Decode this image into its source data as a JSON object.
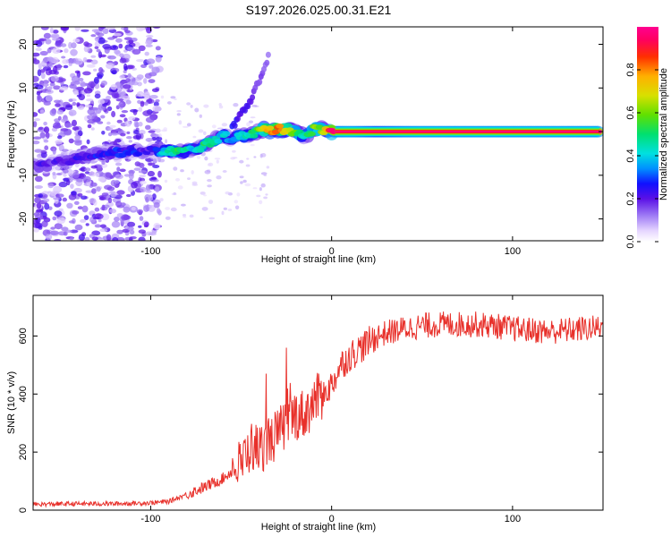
{
  "title": "S197.2026.025.00.31.E21",
  "chart_data": [
    {
      "type": "heatmap",
      "xlabel": "Height of straight line (km)",
      "ylabel": "Frequency (Hz)",
      "xlim": [
        -165,
        150
      ],
      "ylim": [
        -25,
        24
      ],
      "xticks": [
        -100,
        0,
        100
      ],
      "xtick_labels": [
        "-100",
        "0",
        "100"
      ],
      "yticks": [
        -20,
        -10,
        0,
        10,
        20
      ],
      "ytick_labels": [
        "-20",
        "-10",
        "0",
        "10",
        "20"
      ],
      "colorbar": {
        "label": "Normalized spectral amplitude",
        "range": [
          0,
          1
        ],
        "ticks": [
          0.0,
          0.2,
          0.4,
          0.6,
          0.8
        ],
        "tick_labels": [
          "0.0",
          "0.2",
          "0.4",
          "0.6",
          "0.8"
        ]
      },
      "ridge": {
        "x": [
          -165,
          -150,
          -130,
          -110,
          -100,
          -95,
          -90,
          -85,
          -80,
          -75,
          -70,
          -65,
          -60,
          -55,
          -50,
          -45,
          -40,
          -35,
          -30,
          -25,
          -20,
          -15,
          -10,
          -5,
          0,
          10,
          25,
          50,
          100,
          148
        ],
        "freq": [
          -8,
          -7,
          -5,
          -4.5,
          -4.5,
          -4.5,
          -4.5,
          -4.5,
          -4.5,
          -4,
          -3,
          -2,
          -1,
          -1.5,
          -1,
          -1,
          0.5,
          0.3,
          0.5,
          0.5,
          0,
          -1,
          0.5,
          0.5,
          0,
          0,
          0,
          0,
          0,
          0
        ],
        "amplitude": [
          0.2,
          0.2,
          0.25,
          0.25,
          0.2,
          0.35,
          0.45,
          0.5,
          0.45,
          0.4,
          0.5,
          0.45,
          0.4,
          0.35,
          0.4,
          0.45,
          0.6,
          0.75,
          0.85,
          0.7,
          0.55,
          0.45,
          0.6,
          0.6,
          0.95,
          1.0,
          0.9,
          1.0,
          1.0,
          1.0
        ]
      },
      "branch": {
        "x": [
          -55,
          -50,
          -45,
          -42,
          -38,
          -35
        ],
        "freq": [
          1,
          4,
          7,
          10,
          13,
          17
        ],
        "amplitude": [
          0.25,
          0.22,
          0.2,
          0.18,
          0.15,
          0.12
        ]
      }
    },
    {
      "type": "line",
      "xlabel": "Height of straight line (km)",
      "ylabel": "SNR (10 * v/v)",
      "xlim": [
        -165,
        150
      ],
      "ylim": [
        0,
        740
      ],
      "xticks": [
        -100,
        0,
        100
      ],
      "xtick_labels": [
        "-100",
        "0",
        "100"
      ],
      "yticks": [
        0,
        200,
        400,
        600
      ],
      "ytick_labels": [
        "0",
        "200",
        "400",
        "600"
      ],
      "color": "#e8302a",
      "series": [
        {
          "name": "SNR",
          "x": [
            -165,
            -140,
            -120,
            -100,
            -90,
            -80,
            -70,
            -60,
            -50,
            -45,
            -40,
            -35,
            -30,
            -25,
            -20,
            -15,
            -10,
            -5,
            0,
            5,
            10,
            15,
            20,
            25,
            30,
            40,
            50,
            60,
            70,
            80,
            90,
            100,
            110,
            120,
            130,
            140,
            150
          ],
          "values": [
            20,
            22,
            22,
            25,
            30,
            55,
            80,
            110,
            160,
            220,
            210,
            240,
            260,
            300,
            330,
            330,
            370,
            400,
            430,
            500,
            530,
            555,
            575,
            600,
            610,
            625,
            635,
            640,
            640,
            640,
            635,
            625,
            620,
            615,
            620,
            625,
            630
          ]
        }
      ]
    }
  ]
}
